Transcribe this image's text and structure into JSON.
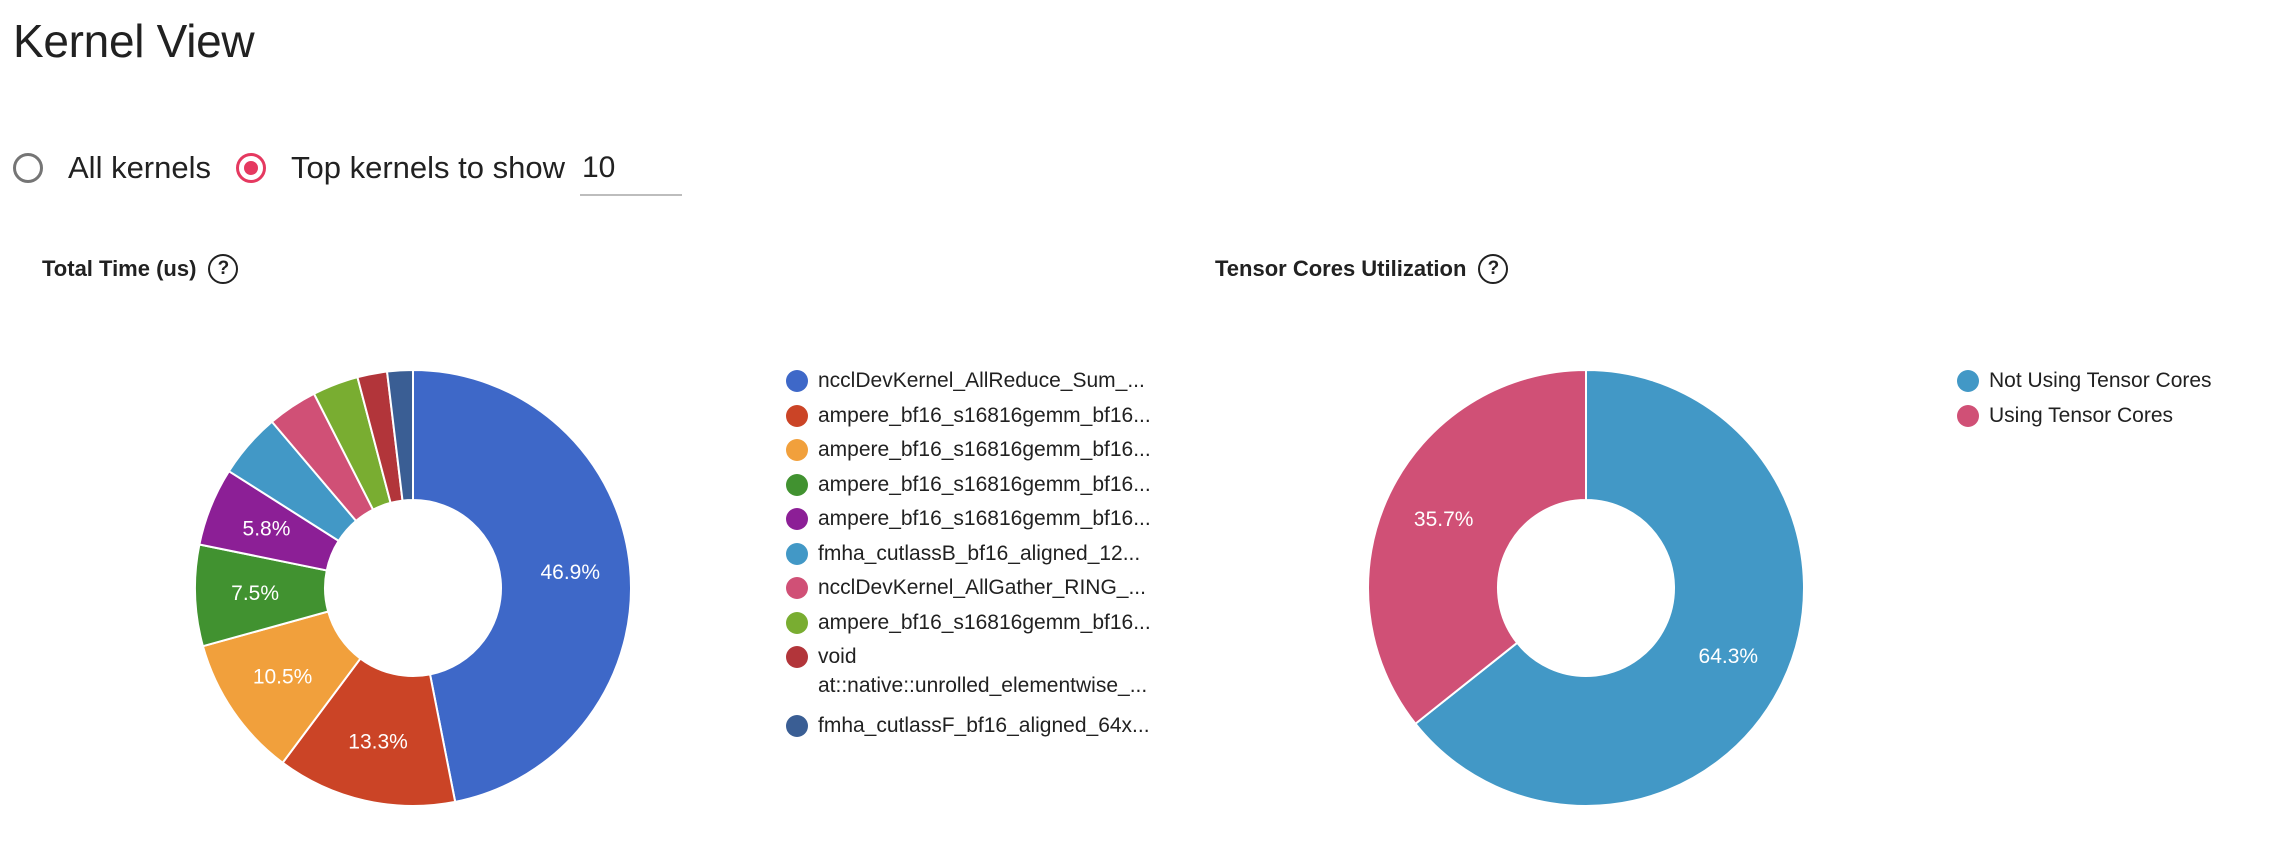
{
  "header": {
    "title": "Kernel View"
  },
  "controls": {
    "all_kernels_label": "All kernels",
    "top_kernels_label": "Top kernels to show",
    "top_kernels_value": "10",
    "selected": "top"
  },
  "total_time": {
    "title": "Total Time (us)",
    "help_icon": "question-circle-icon",
    "legend": [
      {
        "label": "ncclDevKernel_AllReduce_Sum_...",
        "color": "#3e68c8"
      },
      {
        "label": "ampere_bf16_s16816gemm_bf16...",
        "color": "#cb4426"
      },
      {
        "label": "ampere_bf16_s16816gemm_bf16...",
        "color": "#f1a03c"
      },
      {
        "label": "ampere_bf16_s16816gemm_bf16...",
        "color": "#419230"
      },
      {
        "label": "ampere_bf16_s16816gemm_bf16...",
        "color": "#8c1f96"
      },
      {
        "label": "fmha_cutlassB_bf16_aligned_12...",
        "color": "#4298c6"
      },
      {
        "label": "ncclDevKernel_AllGather_RING_...",
        "color": "#d05076"
      },
      {
        "label": "ampere_bf16_s16816gemm_bf16...",
        "color": "#79ad31"
      },
      {
        "label": "void",
        "label_line2": "at::native::unrolled_elementwise_...",
        "color": "#b2353a"
      },
      {
        "label": "fmha_cutlassF_bf16_aligned_64x...",
        "color": "#3a5e94"
      }
    ]
  },
  "tensor_cores": {
    "title": "Tensor Cores Utilization",
    "help_icon": "question-circle-icon",
    "legend": [
      {
        "label": "Not Using Tensor Cores",
        "color": "#4298c6"
      },
      {
        "label": "Using Tensor Cores",
        "color": "#d05076"
      }
    ]
  },
  "chart_data": [
    {
      "type": "pie",
      "title": "Total Time (us)",
      "donut": true,
      "legend_position": "right",
      "slices": [
        {
          "label": "ncclDevKernel_AllReduce_Sum_...",
          "value": 46.9,
          "display": "46.9%",
          "color": "#3e68c8"
        },
        {
          "label": "ampere_bf16_s16816gemm_bf16...",
          "value": 13.3,
          "display": "13.3%",
          "color": "#cb4426"
        },
        {
          "label": "ampere_bf16_s16816gemm_bf16...",
          "value": 10.5,
          "display": "10.5%",
          "color": "#f1a03c"
        },
        {
          "label": "ampere_bf16_s16816gemm_bf16...",
          "value": 7.5,
          "display": "7.5%",
          "color": "#419230"
        },
        {
          "label": "ampere_bf16_s16816gemm_bf16...",
          "value": 5.8,
          "display": "5.8%",
          "color": "#8c1f96"
        },
        {
          "label": "fmha_cutlassB_bf16_aligned_12...",
          "value": 4.8,
          "display": "",
          "color": "#4298c6"
        },
        {
          "label": "ncclDevKernel_AllGather_RING_...",
          "value": 3.7,
          "display": "",
          "color": "#d05076"
        },
        {
          "label": "ampere_bf16_s16816gemm_bf16...",
          "value": 3.4,
          "display": "",
          "color": "#79ad31"
        },
        {
          "label": "void at::native::unrolled_elementwise_...",
          "value": 2.2,
          "display": "",
          "color": "#b2353a"
        },
        {
          "label": "fmha_cutlassF_bf16_aligned_64x...",
          "value": 1.9,
          "display": "",
          "color": "#3a5e94"
        }
      ]
    },
    {
      "type": "pie",
      "title": "Tensor Cores Utilization",
      "donut": true,
      "legend_position": "right",
      "slices": [
        {
          "label": "Not Using Tensor Cores",
          "value": 64.3,
          "display": "64.3%",
          "color": "#4298c6"
        },
        {
          "label": "Using Tensor Cores",
          "value": 35.7,
          "display": "35.7%",
          "color": "#d05076"
        }
      ]
    }
  ]
}
